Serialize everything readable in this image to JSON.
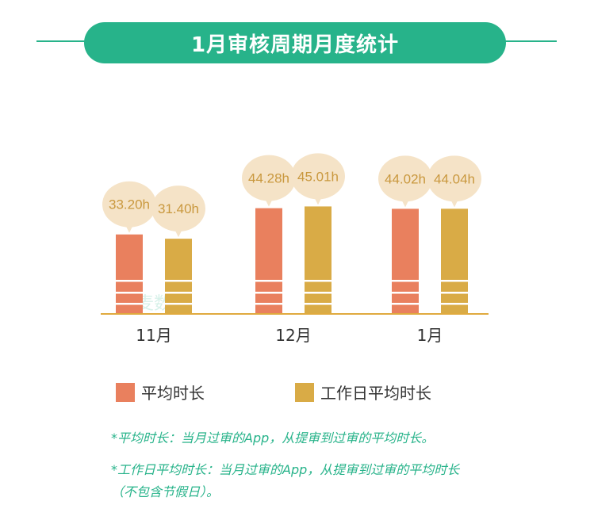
{
  "title": "1月审核周期月度统计",
  "colors": {
    "accent": "#27b38a",
    "series_avg": "#e9805e",
    "series_workday": "#d9ab46",
    "bubble": "#f5e3c7",
    "bubble_text": "#c9983e",
    "axis": "#e0aa3e"
  },
  "chart_data": {
    "type": "bar",
    "categories": [
      "11月",
      "12月",
      "1月"
    ],
    "series": [
      {
        "name": "平均时长",
        "values": [
          33.2,
          44.28,
          44.02
        ],
        "labels": [
          "33.20h",
          "44.28h",
          "44.02h"
        ]
      },
      {
        "name": "工作日平均时长",
        "values": [
          31.4,
          45.01,
          44.04
        ],
        "labels": [
          "31.40h",
          "45.01h",
          "44.04h"
        ]
      }
    ],
    "unit": "h",
    "legend_position": "bottom",
    "grid": false
  },
  "watermark": "七麦数据",
  "legend": [
    {
      "label": "平均时长"
    },
    {
      "label": "工作日平均时长"
    }
  ],
  "notes": {
    "note1": "*平均时长：当月过审的App，从提审到过审的平均时长。",
    "note2_line1": "*工作日平均时长：当月过审的App，从提审到过审的平均时长",
    "note2_line2": "（不包含节假日）。"
  }
}
